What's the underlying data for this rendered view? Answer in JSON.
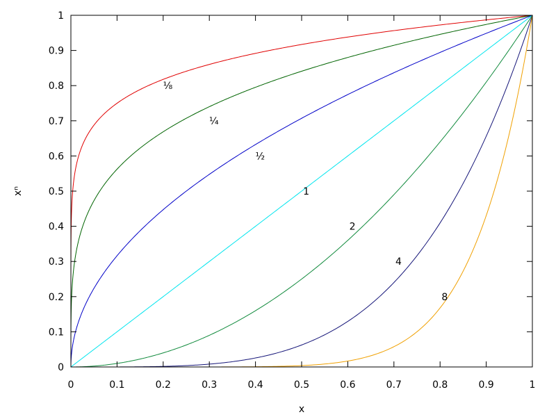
{
  "chart_data": {
    "type": "line",
    "title": "",
    "xlabel": "x",
    "ylabel": "xⁿ",
    "xlim": [
      0,
      1
    ],
    "ylim": [
      0,
      1
    ],
    "xticks": [
      "0",
      "0.1",
      "0.2",
      "0.3",
      "0.4",
      "0.5",
      "0.6",
      "0.7",
      "0.8",
      "0.9",
      "1"
    ],
    "yticks": [
      "0",
      "0.1",
      "0.2",
      "0.3",
      "0.4",
      "0.5",
      "0.6",
      "0.7",
      "0.8",
      "0.9",
      "1"
    ],
    "grid": false,
    "legend": "none",
    "series": [
      {
        "label": "⅛",
        "exponent": 0.125,
        "color": "#e00000",
        "label_at": [
          0.21,
          0.8
        ]
      },
      {
        "label": "¼",
        "exponent": 0.25,
        "color": "#006400",
        "label_at": [
          0.31,
          0.7
        ]
      },
      {
        "label": "½",
        "exponent": 0.5,
        "color": "#0000c8",
        "label_at": [
          0.41,
          0.6
        ]
      },
      {
        "label": "1",
        "exponent": 1,
        "color": "#00e5ee",
        "label_at": [
          0.51,
          0.5
        ]
      },
      {
        "label": "2",
        "exponent": 2,
        "color": "#108a3c",
        "label_at": [
          0.61,
          0.4
        ]
      },
      {
        "label": "4",
        "exponent": 4,
        "color": "#141478",
        "label_at": [
          0.71,
          0.3
        ]
      },
      {
        "label": "8",
        "exponent": 8,
        "color": "#f0a000",
        "label_at": [
          0.81,
          0.2
        ]
      }
    ]
  }
}
